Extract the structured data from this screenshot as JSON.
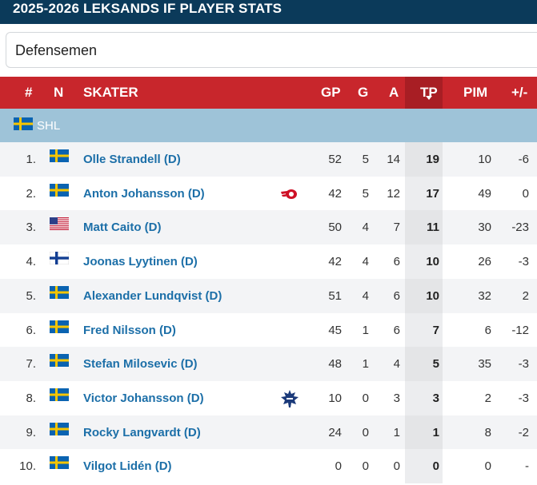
{
  "title": "2025-2026 LEKSANDS IF PLAYER STATS",
  "position_select": {
    "value": "Defensemen"
  },
  "columns": {
    "rank": "#",
    "nat": "N",
    "skater": "SKATER",
    "gp": "GP",
    "g": "G",
    "a": "A",
    "tp": "TP",
    "pim": "PIM",
    "pm": "+/-"
  },
  "league": {
    "name": "SHL",
    "flag_icon": "sweden-flag-icon"
  },
  "colors": {
    "title_bg": "#0b3a5a",
    "header_bg": "#c8262c",
    "league_bg": "#9ec3d8",
    "link": "#1c6fa8"
  },
  "players": [
    {
      "rank": "1.",
      "flag": "sweden",
      "name": "Olle Strandell (D)",
      "team_icon": "",
      "gp": "52",
      "g": "5",
      "a": "14",
      "tp": "19",
      "pim": "10",
      "pm": "-6"
    },
    {
      "rank": "2.",
      "flag": "sweden",
      "name": "Anton Johansson (D)",
      "team_icon": "red-wings-logo-icon",
      "gp": "42",
      "g": "5",
      "a": "12",
      "tp": "17",
      "pim": "49",
      "pm": "0"
    },
    {
      "rank": "3.",
      "flag": "usa",
      "name": "Matt Caito (D)",
      "team_icon": "",
      "gp": "50",
      "g": "4",
      "a": "7",
      "tp": "11",
      "pim": "30",
      "pm": "-23"
    },
    {
      "rank": "4.",
      "flag": "finland",
      "name": "Joonas Lyytinen (D)",
      "team_icon": "",
      "gp": "42",
      "g": "4",
      "a": "6",
      "tp": "10",
      "pim": "26",
      "pm": "-3"
    },
    {
      "rank": "5.",
      "flag": "sweden",
      "name": "Alexander Lundqvist (D)",
      "team_icon": "",
      "gp": "51",
      "g": "4",
      "a": "6",
      "tp": "10",
      "pim": "32",
      "pm": "2"
    },
    {
      "rank": "6.",
      "flag": "sweden",
      "name": "Fred Nilsson (D)",
      "team_icon": "",
      "gp": "45",
      "g": "1",
      "a": "6",
      "tp": "7",
      "pim": "6",
      "pm": "-12"
    },
    {
      "rank": "7.",
      "flag": "sweden",
      "name": "Stefan Milosevic (D)",
      "team_icon": "",
      "gp": "48",
      "g": "1",
      "a": "4",
      "tp": "5",
      "pim": "35",
      "pm": "-3"
    },
    {
      "rank": "8.",
      "flag": "sweden",
      "name": "Victor Johansson (D)",
      "team_icon": "maple-leafs-logo-icon",
      "gp": "10",
      "g": "0",
      "a": "3",
      "tp": "3",
      "pim": "2",
      "pm": "-3"
    },
    {
      "rank": "9.",
      "flag": "sweden",
      "name": "Rocky Langvardt (D)",
      "team_icon": "",
      "gp": "24",
      "g": "0",
      "a": "1",
      "tp": "1",
      "pim": "8",
      "pm": "-2"
    },
    {
      "rank": "10.",
      "flag": "sweden",
      "name": "Vilgot Lidén (D)",
      "team_icon": "",
      "gp": "0",
      "g": "0",
      "a": "0",
      "tp": "0",
      "pim": "0",
      "pm": "-"
    }
  ]
}
